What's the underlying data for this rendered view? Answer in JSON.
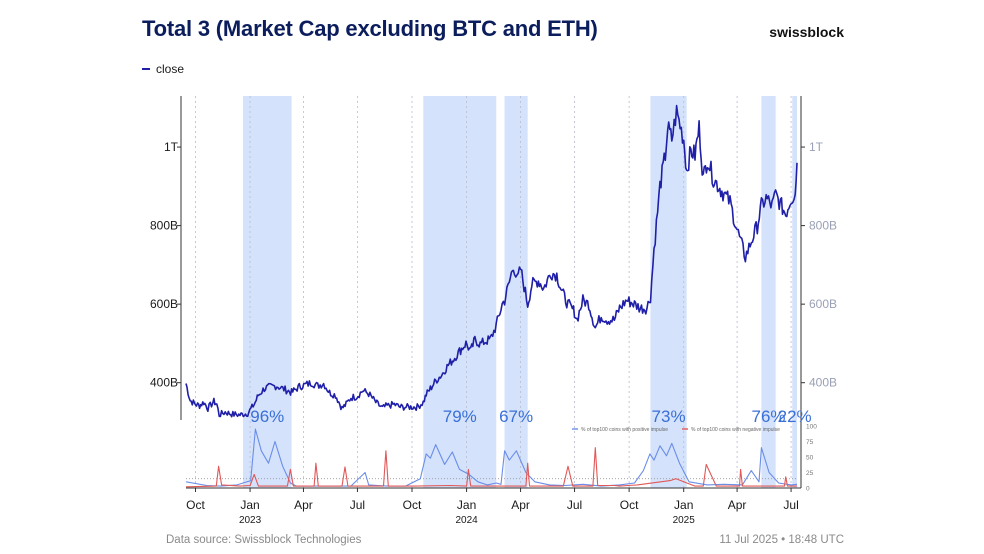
{
  "header": {
    "title": "Total 3 (Market Cap excluding BTC and ETH)",
    "brand": "swissblock",
    "legend_label": "close"
  },
  "footer": {
    "source": "Data source: Swissblock Technologies",
    "timestamp": "11 Jul 2025 • 18:48 UTC"
  },
  "colors": {
    "price_line": "#1f1fa8",
    "price_line_highlight": "#6b7fe6",
    "band": "#d4e3fb",
    "positive_impulse": "#6a8de8",
    "negative_impulse": "#e25757",
    "axis_text": "#1a1a1a",
    "axis_text_right": "#9aa0b5"
  },
  "chart_data": [
    {
      "type": "line",
      "title": "Total 3 (Market Cap excluding BTC and ETH)",
      "x_ticks": [
        {
          "month": "2022-10",
          "label": "Oct"
        },
        {
          "month": "2023-01",
          "label": "Jan",
          "year": "2023"
        },
        {
          "month": "2023-04",
          "label": "Apr"
        },
        {
          "month": "2023-07",
          "label": "Jul"
        },
        {
          "month": "2023-10",
          "label": "Oct"
        },
        {
          "month": "2024-01",
          "label": "Jan",
          "year": "2024"
        },
        {
          "month": "2024-04",
          "label": "Apr"
        },
        {
          "month": "2024-07",
          "label": "Jul"
        },
        {
          "month": "2024-10",
          "label": "Oct"
        },
        {
          "month": "2025-01",
          "label": "Jan",
          "year": "2025"
        },
        {
          "month": "2025-04",
          "label": "Apr"
        },
        {
          "month": "2025-07",
          "label": "Jul"
        }
      ],
      "y_ticks": [
        {
          "value": 400,
          "label": "400B"
        },
        {
          "value": 600,
          "label": "600B"
        },
        {
          "value": 800,
          "label": "800B"
        },
        {
          "value": 1000,
          "label": "1T"
        }
      ],
      "y_unit": "USD billions",
      "ylim": [
        305,
        1130
      ],
      "x_range": [
        "2022-09-15",
        "2025-07-11"
      ],
      "series": [
        {
          "name": "close",
          "x": [
            "2022-09-15",
            "2022-09-22",
            "2022-10-01",
            "2022-10-08",
            "2022-10-15",
            "2022-10-22",
            "2022-11-01",
            "2022-11-06",
            "2022-11-10",
            "2022-11-20",
            "2022-12-01",
            "2022-12-15",
            "2022-12-28",
            "2023-01-08",
            "2023-01-15",
            "2023-01-25",
            "2023-02-05",
            "2023-02-15",
            "2023-02-25",
            "2023-03-05",
            "2023-03-12",
            "2023-03-25",
            "2023-04-05",
            "2023-04-15",
            "2023-04-25",
            "2023-05-05",
            "2023-05-15",
            "2023-05-25",
            "2023-06-05",
            "2023-06-12",
            "2023-06-20",
            "2023-06-30",
            "2023-07-10",
            "2023-07-20",
            "2023-08-01",
            "2023-08-12",
            "2023-08-18",
            "2023-09-01",
            "2023-09-11",
            "2023-09-25",
            "2023-10-10",
            "2023-10-20",
            "2023-10-25",
            "2023-11-01",
            "2023-11-10",
            "2023-11-20",
            "2023-12-01",
            "2023-12-10",
            "2023-12-20",
            "2023-12-31",
            "2024-01-08",
            "2024-01-15",
            "2024-01-24",
            "2024-02-01",
            "2024-02-10",
            "2024-02-20",
            "2024-03-01",
            "2024-03-05",
            "2024-03-13",
            "2024-03-20",
            "2024-03-26",
            "2024-04-01",
            "2024-04-13",
            "2024-04-20",
            "2024-05-01",
            "2024-05-10",
            "2024-05-22",
            "2024-06-01",
            "2024-06-10",
            "2024-06-20",
            "2024-07-01",
            "2024-07-05",
            "2024-07-15",
            "2024-07-25",
            "2024-08-05",
            "2024-08-15",
            "2024-08-25",
            "2024-09-06",
            "2024-09-15",
            "2024-09-27",
            "2024-10-10",
            "2024-10-20",
            "2024-10-31",
            "2024-11-06",
            "2024-11-12",
            "2024-11-22",
            "2024-12-01",
            "2024-12-05",
            "2024-12-12",
            "2024-12-20",
            "2025-01-01",
            "2025-01-06",
            "2025-01-13",
            "2025-01-20",
            "2025-01-27",
            "2025-02-03",
            "2025-02-10",
            "2025-02-20",
            "2025-03-01",
            "2025-03-10",
            "2025-03-20",
            "2025-04-01",
            "2025-04-07",
            "2025-04-15",
            "2025-04-25",
            "2025-05-05",
            "2025-05-12",
            "2025-05-20",
            "2025-05-30",
            "2025-06-05",
            "2025-06-13",
            "2025-06-22",
            "2025-07-01",
            "2025-07-08",
            "2025-07-11"
          ],
          "y": [
            398,
            355,
            345,
            342,
            350,
            335,
            352,
            345,
            318,
            325,
            320,
            318,
            322,
            345,
            368,
            385,
            390,
            392,
            385,
            380,
            375,
            390,
            395,
            400,
            392,
            398,
            375,
            368,
            335,
            345,
            362,
            365,
            380,
            372,
            350,
            335,
            340,
            345,
            338,
            338,
            338,
            350,
            370,
            385,
            405,
            420,
            445,
            460,
            480,
            500,
            480,
            510,
            498,
            505,
            510,
            545,
            600,
            610,
            655,
            700,
            660,
            690,
            600,
            650,
            660,
            640,
            680,
            675,
            630,
            600,
            580,
            560,
            610,
            600,
            540,
            570,
            560,
            560,
            590,
            610,
            600,
            590,
            590,
            620,
            740,
            900,
            980,
            1050,
            1020,
            1090,
            1020,
            940,
            990,
            980,
            1050,
            920,
            970,
            920,
            900,
            880,
            860,
            790,
            760,
            720,
            760,
            800,
            850,
            870,
            850,
            880,
            855,
            830,
            870,
            880,
            960
          ]
        }
      ],
      "highlight_bands": [
        {
          "start": "2022-12-20",
          "end": "2023-03-12",
          "label": "96%"
        },
        {
          "start": "2023-10-20",
          "end": "2024-02-20",
          "label": "79%"
        },
        {
          "start": "2024-03-05",
          "end": "2024-04-13",
          "label": "67%"
        },
        {
          "start": "2024-11-06",
          "end": "2025-01-06",
          "label": "73%"
        },
        {
          "start": "2025-05-12",
          "end": "2025-06-05",
          "label": "76%"
        },
        {
          "start": "2025-07-03",
          "end": "2025-07-11",
          "label": "22%"
        }
      ]
    },
    {
      "type": "line",
      "title": "",
      "y_ticks": [
        0,
        25,
        50,
        75,
        100
      ],
      "ylim": [
        0,
        100
      ],
      "reference_level": 15,
      "series": [
        {
          "name": "% of top100 coins with positive impulse",
          "x": [
            "2022-09-15",
            "2022-10-20",
            "2022-11-12",
            "2022-12-10",
            "2023-01-02",
            "2023-01-10",
            "2023-01-20",
            "2023-02-01",
            "2023-02-12",
            "2023-02-25",
            "2023-03-10",
            "2023-03-20",
            "2023-04-20",
            "2023-05-20",
            "2023-06-20",
            "2023-07-14",
            "2023-07-20",
            "2023-08-20",
            "2023-09-20",
            "2023-10-15",
            "2023-10-25",
            "2023-11-01",
            "2023-11-10",
            "2023-11-25",
            "2023-12-08",
            "2023-12-20",
            "2024-01-05",
            "2024-01-20",
            "2024-02-05",
            "2024-02-20",
            "2024-02-28",
            "2024-03-05",
            "2024-03-13",
            "2024-03-25",
            "2024-04-10",
            "2024-04-25",
            "2024-05-20",
            "2024-06-15",
            "2024-07-15",
            "2024-08-15",
            "2024-09-15",
            "2024-10-10",
            "2024-10-25",
            "2024-11-05",
            "2024-11-12",
            "2024-11-22",
            "2024-12-03",
            "2024-12-12",
            "2024-12-25",
            "2025-01-10",
            "2025-02-10",
            "2025-03-10",
            "2025-04-10",
            "2025-04-25",
            "2025-05-08",
            "2025-05-12",
            "2025-05-25",
            "2025-06-10",
            "2025-07-01",
            "2025-07-11"
          ],
          "y": [
            10,
            4,
            3,
            5,
            12,
            95,
            60,
            40,
            75,
            35,
            8,
            3,
            3,
            3,
            3,
            25,
            5,
            3,
            3,
            15,
            55,
            48,
            70,
            38,
            58,
            30,
            22,
            10,
            5,
            8,
            6,
            60,
            45,
            60,
            25,
            10,
            5,
            4,
            6,
            3,
            5,
            8,
            28,
            55,
            45,
            68,
            52,
            72,
            40,
            10,
            5,
            6,
            5,
            28,
            10,
            65,
            25,
            8,
            5,
            6
          ]
        },
        {
          "name": "% of top100 coins with negative impulse",
          "x": [
            "2022-09-15",
            "2022-11-05",
            "2022-11-09",
            "2022-11-14",
            "2022-12-15",
            "2023-01-01",
            "2023-01-08",
            "2023-01-15",
            "2023-03-05",
            "2023-03-10",
            "2023-03-15",
            "2023-04-19",
            "2023-04-22",
            "2023-04-26",
            "2023-06-05",
            "2023-06-10",
            "2023-06-15",
            "2023-08-14",
            "2023-08-18",
            "2023-08-22",
            "2023-09-15",
            "2023-10-05",
            "2023-12-05",
            "2024-01-01",
            "2024-01-04",
            "2024-01-08",
            "2024-03-15",
            "2024-04-10",
            "2024-04-13",
            "2024-04-16",
            "2024-05-20",
            "2024-06-12",
            "2024-06-20",
            "2024-06-28",
            "2024-07-05",
            "2024-08-01",
            "2024-08-05",
            "2024-08-09",
            "2024-09-06",
            "2024-09-15",
            "2024-10-15",
            "2024-12-09",
            "2024-12-19",
            "2025-01-20",
            "2025-02-03",
            "2025-02-08",
            "2025-02-25",
            "2025-03-05",
            "2025-04-05",
            "2025-04-07",
            "2025-04-10",
            "2025-05-20",
            "2025-06-20",
            "2025-06-22",
            "2025-06-25",
            "2025-07-11"
          ],
          "y": [
            2,
            3,
            35,
            5,
            3,
            4,
            22,
            3,
            3,
            30,
            3,
            3,
            40,
            3,
            3,
            34,
            3,
            3,
            60,
            3,
            3,
            3,
            4,
            3,
            30,
            3,
            3,
            3,
            40,
            3,
            3,
            3,
            35,
            3,
            3,
            3,
            65,
            4,
            4,
            3,
            5,
            12,
            15,
            3,
            3,
            38,
            3,
            3,
            3,
            30,
            3,
            3,
            3,
            18,
            3,
            3
          ]
        }
      ]
    }
  ]
}
